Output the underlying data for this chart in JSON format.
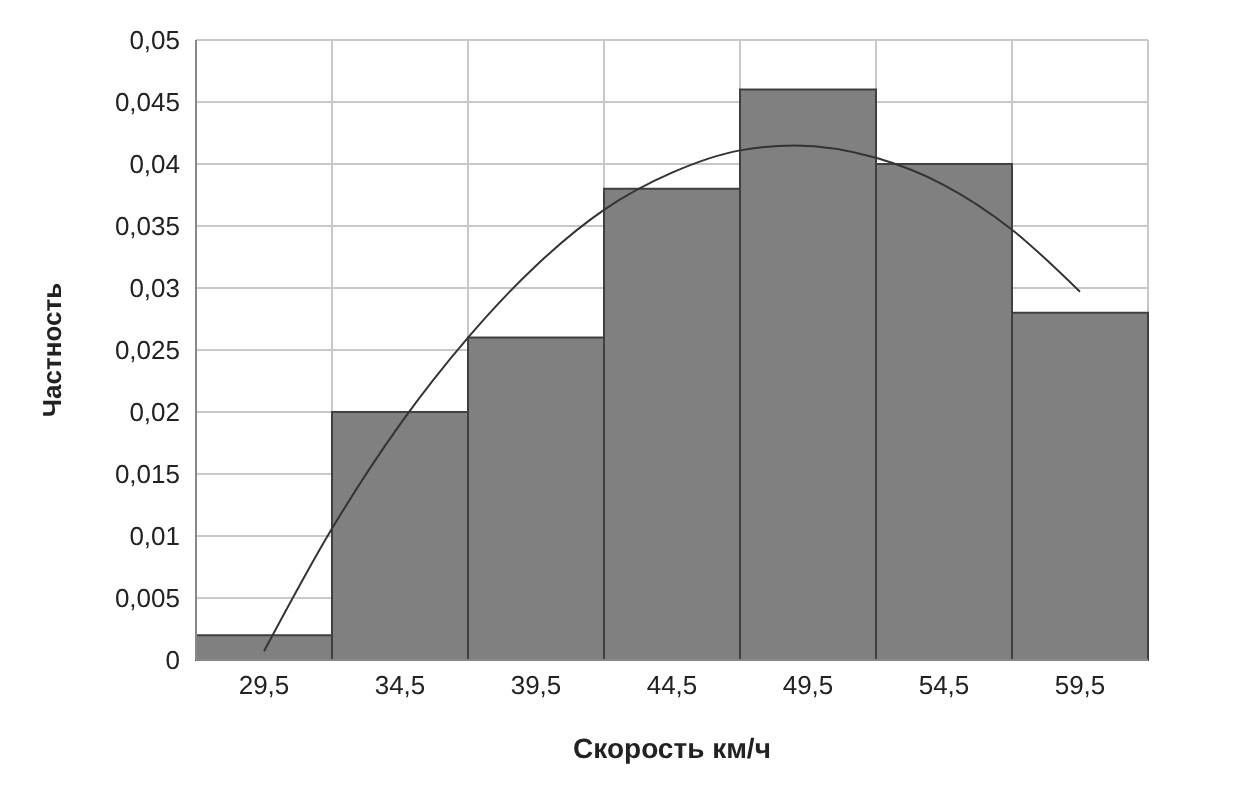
{
  "chart_data": {
    "type": "histogram",
    "xlabel": "Скорость км/ч",
    "ylabel": "Частность",
    "bins": [
      27,
      32,
      37,
      42,
      47,
      52,
      57,
      62
    ],
    "values": [
      0.002,
      0.02,
      0.026,
      0.038,
      0.046,
      0.04,
      0.028
    ],
    "color": "#808080",
    "series": [
      {
        "type": "line",
        "color": "#333333",
        "x": [
          29.5,
          32,
          34.5,
          37,
          39.5,
          42,
          44.5,
          47,
          49,
          52,
          54.5,
          57,
          59.5
        ],
        "values": [
          0.0007,
          0.0106,
          0.019,
          0.026,
          0.0318,
          0.0363,
          0.0393,
          0.0411,
          0.0415,
          0.0405,
          0.0383,
          0.0347,
          0.0297
        ]
      }
    ],
    "xlim": [
      27,
      62
    ],
    "xticks": [
      {
        "value": 29.5,
        "label": "29,5"
      },
      {
        "value": 34.5,
        "label": "34,5"
      },
      {
        "value": 39.5,
        "label": "39,5"
      },
      {
        "value": 44.5,
        "label": "44,5"
      },
      {
        "value": 49.5,
        "label": "49,5"
      },
      {
        "value": 54.5,
        "label": "54,5"
      },
      {
        "value": 59.5,
        "label": "59,5"
      }
    ],
    "ylim": [
      0,
      0.05
    ],
    "yticks": [
      0,
      {
        "value": 0.005,
        "label": "0,005"
      },
      {
        "value": 0.01,
        "label": "0,01"
      },
      {
        "value": 0.015,
        "label": "0,015"
      },
      {
        "value": 0.02,
        "label": "0,02"
      },
      {
        "value": 0.025,
        "label": "0,025"
      },
      {
        "value": 0.03,
        "label": "0,03"
      },
      {
        "value": 0.035,
        "label": "0,035"
      },
      {
        "value": 0.04,
        "label": "0,04"
      },
      {
        "value": 0.045,
        "label": "0,045"
      },
      {
        "value": 0.05,
        "label": "0,05"
      }
    ],
    "grid": true
  }
}
